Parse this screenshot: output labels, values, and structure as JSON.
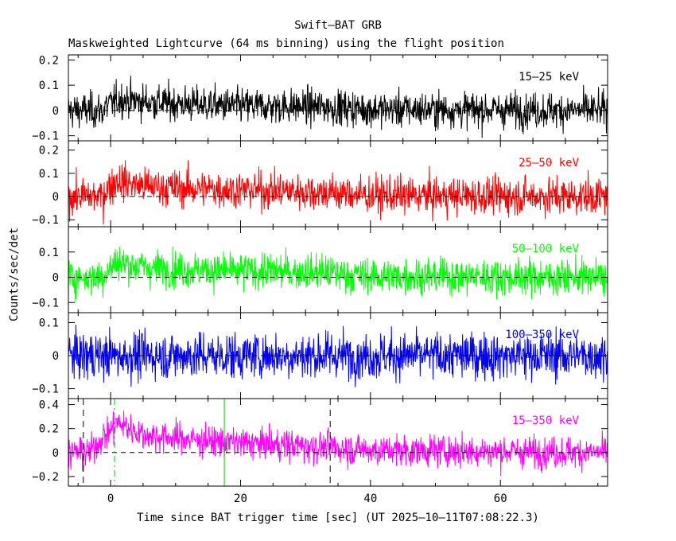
{
  "chart_data": {
    "type": "line",
    "title": "Swift–BAT GRB",
    "subtitle": "Maskweighted Lightcurve (64 ms binning) using the flight position",
    "xlabel": "Time since BAT trigger time [sec] (UT 2025–10–11T07:08:22.3)",
    "ylabel": "Counts/sec/det",
    "xlim": [
      -6.5,
      76.5
    ],
    "x_ticks": [
      0,
      20,
      40,
      60
    ],
    "x_tick_labels": [
      "0",
      "20",
      "40",
      "60"
    ],
    "bin_seconds": 0.064,
    "grid": false,
    "panels": [
      {
        "name": "15–25 keV",
        "color": "#000000",
        "ylim": [
          -0.12,
          0.22
        ],
        "y_ticks": [
          -0.1,
          0,
          0.1,
          0.2
        ],
        "y_tick_labels": [
          "−0.1",
          "0",
          "0.1",
          "0.2"
        ],
        "noise_sigma": 0.035,
        "series": [
          {
            "name": "15–25 keV",
            "pulse": [
              [
                -1.0,
                0.012
              ],
              [
                1.5,
                0.045
              ],
              [
                5.0,
                0.035
              ],
              [
                12.0,
                0.025
              ],
              [
                20.0,
                0.018
              ],
              [
                32.0,
                0.015
              ],
              [
                40.0,
                0.005
              ],
              [
                76.0,
                0.0
              ]
            ]
          }
        ]
      },
      {
        "name": "25–50 keV",
        "color": "#ff0000",
        "ylim": [
          -0.13,
          0.24
        ],
        "y_ticks": [
          -0.1,
          0,
          0.1,
          0.2
        ],
        "y_tick_labels": [
          "−0.1",
          "0",
          "0.1",
          "0.2"
        ],
        "noise_sigma": 0.04,
        "series": [
          {
            "name": "25–50 keV",
            "pulse": [
              [
                -1.0,
                0.02
              ],
              [
                1.0,
                0.07
              ],
              [
                5.0,
                0.045
              ],
              [
                12.0,
                0.035
              ],
              [
                20.0,
                0.03
              ],
              [
                32.0,
                0.02
              ],
              [
                40.0,
                0.005
              ],
              [
                76.0,
                0.0
              ]
            ]
          }
        ]
      },
      {
        "name": "50–100 keV",
        "color": "#00ff00",
        "ylim": [
          -0.14,
          0.2
        ],
        "y_ticks": [
          -0.1,
          0,
          0.1
        ],
        "y_tick_labels": [
          "−0.1",
          "0",
          "0.1"
        ],
        "noise_sigma": 0.035,
        "series": [
          {
            "name": "50–100 keV",
            "pulse": [
              [
                -1.0,
                0.015
              ],
              [
                1.0,
                0.06
              ],
              [
                5.0,
                0.04
              ],
              [
                12.0,
                0.03
              ],
              [
                20.0,
                0.025
              ],
              [
                32.0,
                0.02
              ],
              [
                40.0,
                0.005
              ],
              [
                76.0,
                0.0
              ]
            ]
          }
        ]
      },
      {
        "name": "100–350 keV",
        "color": "#0000ff",
        "ylim": [
          -0.13,
          0.13
        ],
        "y_ticks": [
          -0.1,
          0,
          0.1
        ],
        "y_tick_labels": [
          "−0.1",
          "0",
          "0.1"
        ],
        "noise_sigma": 0.035,
        "series": [
          {
            "name": "100–350 keV",
            "pulse": [
              [
                -6.5,
                0.0
              ],
              [
                76.0,
                0.0
              ]
            ]
          }
        ]
      },
      {
        "name": "15–350 keV",
        "color": "#ff00ff",
        "ylim": [
          -0.28,
          0.45
        ],
        "y_ticks": [
          -0.2,
          0,
          0.2,
          0.4
        ],
        "y_tick_labels": [
          "−0.2",
          "0",
          "0.2",
          "0.4"
        ],
        "noise_sigma": 0.065,
        "series": [
          {
            "name": "15–350 keV",
            "pulse": [
              [
                -3.0,
                0.02
              ],
              [
                1.0,
                0.25
              ],
              [
                5.0,
                0.15
              ],
              [
                12.0,
                0.11
              ],
              [
                20.0,
                0.08
              ],
              [
                32.0,
                0.05
              ],
              [
                40.0,
                0.02
              ],
              [
                76.0,
                0.0
              ]
            ]
          }
        ]
      }
    ],
    "markers": [
      {
        "x": -4.2,
        "color": "#000000",
        "style": "dashed"
      },
      {
        "x": 33.8,
        "color": "#000000",
        "style": "dashed"
      },
      {
        "x": 0.6,
        "color": "#00cc00",
        "style": "dashdot"
      },
      {
        "x": 17.5,
        "color": "#00cc00",
        "style": "solid"
      }
    ]
  }
}
